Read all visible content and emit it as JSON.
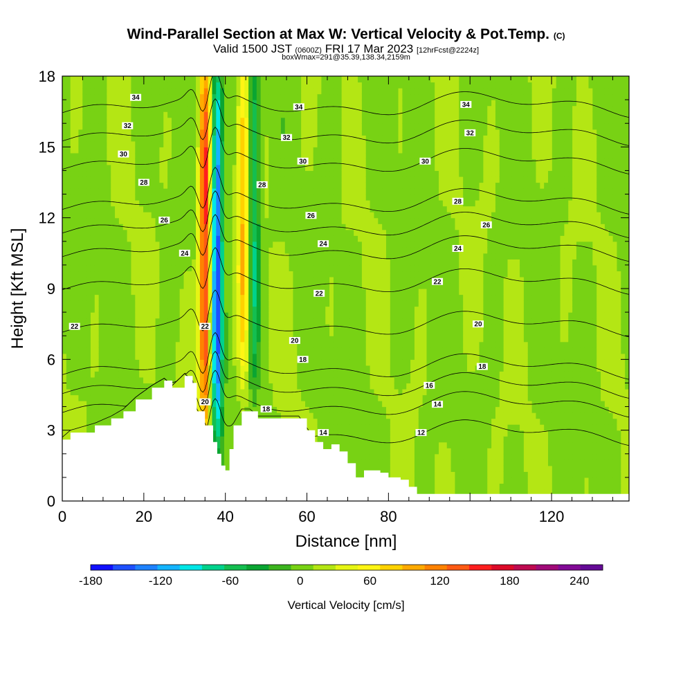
{
  "title": {
    "main": "Wind-Parallel Section at Max W: Vertical Velocity & Pot.Temp.",
    "mark": "(C)",
    "valid_prefix": "Valid 1500 JST",
    "valid_utc": "(0600Z)",
    "valid_date": "FRI 17 Mar 2023",
    "forecast": "[12hrFcst@2224z]",
    "box": "boxWmax=291@35.39,138.34,2159m"
  },
  "chart_data": {
    "type": "heatmap",
    "xlabel": "Distance [nm]",
    "ylabel": "Height [Kft MSL]",
    "xlim": [
      0,
      139
    ],
    "ylim": [
      0,
      18
    ],
    "x_ticks": [
      0,
      20,
      40,
      60,
      80,
      120
    ],
    "y_ticks": [
      0,
      3,
      6,
      9,
      12,
      15,
      18
    ],
    "colorbar": {
      "label": "Vertical Velocity [cm/s]",
      "range": [
        -180,
        260
      ],
      "tick_values": [
        -180,
        -120,
        -60,
        0,
        60,
        120,
        180,
        240
      ],
      "colors": [
        "#1010ff",
        "#1e50ff",
        "#1e82ff",
        "#14b4ff",
        "#00e6e6",
        "#00d28c",
        "#14be50",
        "#0aa532",
        "#3cb41e",
        "#78d214",
        "#b4e614",
        "#e6f514",
        "#fff514",
        "#ffd200",
        "#ffaa00",
        "#ff8200",
        "#ff5a14",
        "#ff1e1e",
        "#dc0a28",
        "#be0a50",
        "#a00a78",
        "#820a96",
        "#640a96"
      ]
    },
    "features": [
      {
        "x": 35,
        "y_range": [
          3.5,
          18
        ],
        "w": 150,
        "name": "updraft"
      },
      {
        "x": 38,
        "y_range": [
          3.0,
          18
        ],
        "w": -150,
        "name": "downdraft"
      },
      {
        "x": 44.5,
        "y_range": [
          6.0,
          18
        ],
        "w": 80,
        "name": "updraft"
      },
      {
        "x": 47,
        "y_range": [
          6.0,
          18
        ],
        "w": -80,
        "name": "downdraft"
      }
    ],
    "terrain_height": [
      [
        0,
        2.6
      ],
      [
        2,
        2.9
      ],
      [
        8,
        3.2
      ],
      [
        12,
        3.5
      ],
      [
        15,
        3.8
      ],
      [
        18,
        4.3
      ],
      [
        22,
        4.8
      ],
      [
        25,
        5.1
      ],
      [
        27,
        4.8
      ],
      [
        30,
        5.3
      ],
      [
        32,
        5.0
      ],
      [
        33,
        3.8
      ],
      [
        35,
        3.2
      ],
      [
        37,
        2.5
      ],
      [
        38,
        2.0
      ],
      [
        39,
        1.5
      ],
      [
        40,
        1.3
      ],
      [
        41,
        2.2
      ],
      [
        42,
        3.2
      ],
      [
        44,
        3.8
      ],
      [
        46,
        3.8
      ],
      [
        48,
        3.5
      ],
      [
        58,
        3.5
      ],
      [
        60,
        3.0
      ],
      [
        62,
        2.5
      ],
      [
        64,
        2.2
      ],
      [
        66,
        2.4
      ],
      [
        68,
        2.1
      ],
      [
        70,
        1.6
      ],
      [
        72,
        1.0
      ],
      [
        74,
        1.3
      ],
      [
        78,
        1.2
      ],
      [
        80,
        1.0
      ],
      [
        83,
        0.9
      ],
      [
        85,
        0.6
      ],
      [
        87,
        0.3
      ],
      [
        139,
        0.3
      ]
    ],
    "isentropes": [
      {
        "value": 12,
        "label_at": [
          88,
          2.9
        ]
      },
      {
        "value": 14,
        "label_at": [
          92,
          4.1
        ],
        "extra_labels": [
          [
            64,
            2.9
          ]
        ]
      },
      {
        "value": 16,
        "label_at": [
          90,
          4.9
        ]
      },
      {
        "value": 18,
        "label_at": [
          103,
          5.7
        ],
        "extra_labels": [
          [
            59,
            6.0
          ],
          [
            50,
            3.9
          ]
        ]
      },
      {
        "value": 20,
        "label_at": [
          102,
          7.5
        ],
        "extra_labels": [
          [
            57,
            6.8
          ],
          [
            35,
            4.2
          ]
        ]
      },
      {
        "value": 22,
        "label_at": [
          92,
          9.3
        ],
        "extra_labels": [
          [
            63,
            8.8
          ],
          [
            3,
            7.4
          ],
          [
            35,
            7.4
          ]
        ]
      },
      {
        "value": 24,
        "label_at": [
          97,
          10.7
        ],
        "extra_labels": [
          [
            64,
            10.9
          ],
          [
            30,
            10.5
          ]
        ]
      },
      {
        "value": 26,
        "label_at": [
          104,
          11.7
        ],
        "extra_labels": [
          [
            61,
            12.1
          ],
          [
            25,
            11.9
          ]
        ]
      },
      {
        "value": 28,
        "label_at": [
          97,
          12.7
        ],
        "extra_labels": [
          [
            49,
            13.4
          ],
          [
            20,
            13.5
          ]
        ]
      },
      {
        "value": 30,
        "label_at": [
          89,
          14.4
        ],
        "extra_labels": [
          [
            59,
            14.4
          ],
          [
            15,
            14.7
          ]
        ]
      },
      {
        "value": 32,
        "label_at": [
          100,
          15.6
        ],
        "extra_labels": [
          [
            55,
            15.4
          ],
          [
            16,
            15.9
          ]
        ]
      },
      {
        "value": 34,
        "label_at": [
          99,
          16.8
        ],
        "extra_labels": [
          [
            58,
            16.7
          ],
          [
            18,
            17.1
          ]
        ]
      }
    ]
  }
}
